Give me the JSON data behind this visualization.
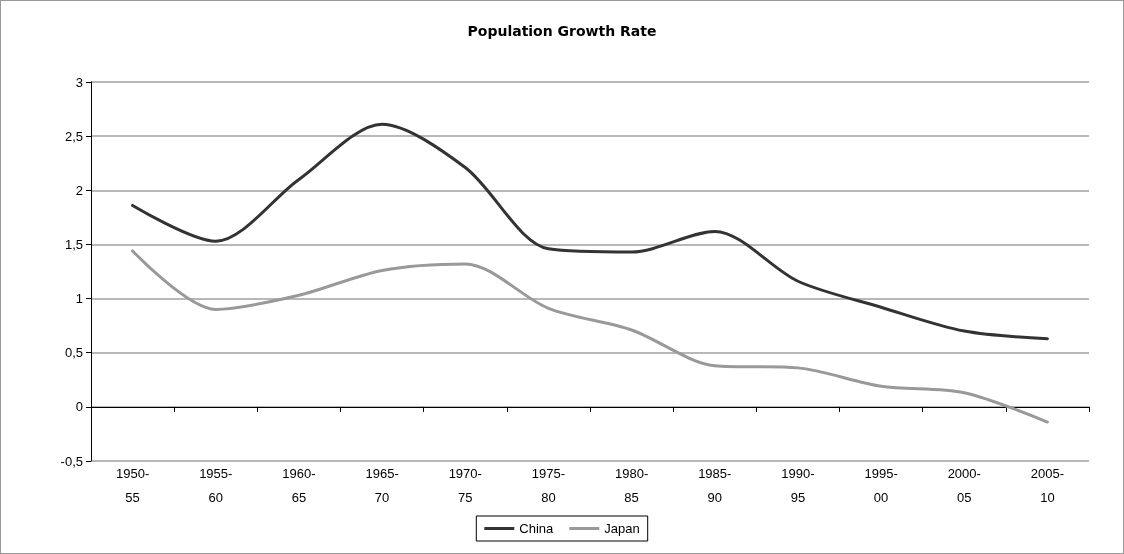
{
  "chart_data": {
    "type": "line",
    "title": "Population Growth Rate",
    "categories": [
      "1950-55",
      "1955-60",
      "1960-65",
      "1965-70",
      "1970-75",
      "1975-80",
      "1980-85",
      "1985-90",
      "1990-95",
      "1995-00",
      "2000-05",
      "2005-10"
    ],
    "series": [
      {
        "name": "China",
        "color": "#333333",
        "values": [
          1.86,
          1.53,
          2.1,
          2.61,
          2.21,
          1.46,
          1.43,
          1.62,
          1.16,
          0.92,
          0.7,
          0.63
        ]
      },
      {
        "name": "Japan",
        "color": "#999999",
        "values": [
          1.44,
          0.9,
          1.03,
          1.26,
          1.32,
          0.91,
          0.71,
          0.38,
          0.36,
          0.19,
          0.13,
          -0.14
        ]
      }
    ],
    "ylim": [
      -0.5,
      3
    ],
    "yticks": [
      {
        "value": -0.5,
        "label": "-0,5"
      },
      0,
      {
        "value": 0.5,
        "label": "0,5"
      },
      1,
      {
        "value": 1.5,
        "label": "1,5"
      },
      2,
      {
        "value": 2.5,
        "label": "2,5"
      },
      3
    ],
    "grid": "y",
    "legend": "bottom",
    "marker": "none",
    "line_style": "solid"
  }
}
